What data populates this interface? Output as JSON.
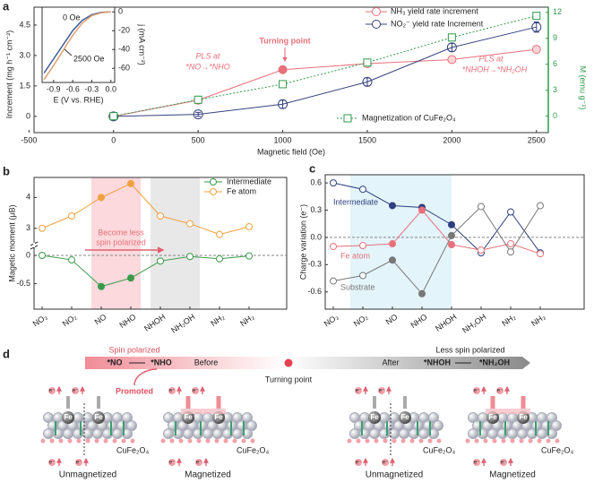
{
  "chart_data": [
    {
      "panel": "a",
      "type": "line",
      "xlabel": "Magnetic field (Oe)",
      "ylabel": "Increment (mg h⁻¹ cm⁻²)",
      "y2label": "M (emu g⁻¹)",
      "x": [
        0,
        500,
        1000,
        1500,
        2000,
        2500
      ],
      "series": [
        {
          "name": "NH₃ yield rate increment",
          "color": "#e8707a",
          "values": [
            0,
            0.8,
            2.3,
            2.6,
            2.8,
            3.3
          ],
          "errors": [
            0.05,
            0.1,
            0.1,
            0.1,
            0.1,
            0.1
          ]
        },
        {
          "name": "NO₂⁻ yield rate Increment",
          "color": "#36427f",
          "values": [
            0,
            0.1,
            0.6,
            1.7,
            3.4,
            4.4
          ],
          "errors": [
            0.05,
            0.1,
            0.2,
            0.2,
            0.2,
            0.25
          ]
        },
        {
          "name": "Magnetization of CuFe₂O₄",
          "color": "#2e9a4a",
          "axis": "y2",
          "values": [
            0,
            1.9,
            3.7,
            6.2,
            9.1,
            11.6
          ]
        }
      ],
      "xlim": [
        -470,
        2570
      ],
      "xticks": [
        -500,
        0,
        500,
        1000,
        1500,
        2000,
        2500
      ],
      "ylim": [
        -0.8,
        5.38
      ],
      "yticks": [
        0,
        1.5,
        {
          "value": 3,
          "label": "3.0"
        },
        4.5
      ],
      "y2lim": [
        -1.9,
        12.6
      ],
      "y2ticks": [
        0,
        3,
        6,
        9,
        12
      ],
      "annotations": [
        "Turning point",
        "PLS at",
        "*NO→*NHO",
        "PLS at",
        "*NHOH→*NH₂OH"
      ]
    },
    {
      "type": "line",
      "xlabel": "E (V vs. RHE)",
      "ylabel": "j (mA cm⁻²)",
      "x": [
        -1.05,
        -0.9,
        -0.75,
        -0.6,
        -0.45,
        -0.3,
        -0.15,
        0
      ],
      "series": [
        {
          "name": "0 Oe",
          "color": "#3d5a99",
          "values": [
            -65,
            -50,
            -35,
            -20,
            -9,
            -3,
            -0.5,
            0
          ]
        },
        {
          "name": "2500 Oe",
          "color": "#e0a070",
          "values": [
            -72,
            -57,
            -41,
            -25,
            -12,
            -4,
            -1,
            0
          ]
        }
      ],
      "xlim": [
        -1.08,
        0.06
      ],
      "xticks": [
        -0.9,
        -0.6,
        -0.3,
        {
          "value": 0,
          "label": "0.0"
        }
      ],
      "ylim": [
        -75,
        5
      ],
      "yticks": [
        0,
        -20,
        -40,
        -60
      ]
    },
    {
      "panel": "b",
      "type": "line",
      "ylabel": "Magetic moment (μB)",
      "categories": [
        "NO₃",
        "NO₂",
        "NO",
        "NHO",
        "NHOH",
        "NH₂OH",
        "NH₂",
        "NH₃"
      ],
      "series": [
        {
          "name": "Intermediate",
          "color": "#3a9a4a",
          "values": [
            0,
            -0.08,
            -0.55,
            -0.4,
            -0.1,
            -0.02,
            -0.06,
            -0.01
          ]
        },
        {
          "name": "Fe atom",
          "color": "#f0a040",
          "values": [
            3.0,
            3.4,
            4.0,
            4.45,
            3.4,
            3.15,
            2.8,
            3.05
          ]
        }
      ],
      "ylim": [
        -0.95,
        4.65
      ],
      "ybreak": [
        0.19,
        2.47
      ],
      "yticks": [
        4,
        3,
        0,
        -0.5
      ],
      "annotations": [
        "Become less",
        "spin polarized"
      ]
    },
    {
      "panel": "c",
      "type": "line",
      "ylabel": "Charge variation (e⁻)",
      "categories": [
        "NO₃",
        "NO₂",
        "NO",
        "NHO",
        "NHOH",
        "NH₂OH",
        "NH₂",
        "NH₃"
      ],
      "series": [
        {
          "name": "Intermediate",
          "color": "#2f3f7f",
          "values": [
            0.6,
            0.53,
            0.35,
            0.33,
            0.14,
            -0.17,
            0.28,
            -0.17
          ]
        },
        {
          "name": "Fe atom",
          "color": "#e8707a",
          "values": [
            -0.1,
            -0.09,
            -0.07,
            0.3,
            -0.08,
            -0.14,
            -0.07,
            -0.18
          ]
        },
        {
          "name": "Substrate",
          "color": "#777777",
          "values": [
            -0.48,
            -0.42,
            -0.25,
            -0.62,
            0.02,
            0.34,
            -0.16,
            0.35
          ]
        }
      ],
      "ylim": [
        -0.79,
        0.69
      ],
      "yticks": [
        0.6,
        0.3,
        {
          "value": 0,
          "label": "0.0"
        },
        -0.3,
        -0.6
      ]
    }
  ],
  "diagram": {
    "panel": "d",
    "spin_polarized": "Spin polarized",
    "before_state": "*NO",
    "before_product": "*NHO",
    "before": "Before",
    "promoted": "Promoted",
    "turning_point": "Turning point",
    "after": "After",
    "less_spin_polarized": "Less spin polarized",
    "after_state": "*NHOH",
    "after_product": "*NH₂OH",
    "fe": "Fe",
    "substrate": "CuFe₂O₄",
    "electron": "e⁻",
    "states": [
      "Unmagnetized",
      "Magnetized",
      "Unmagnetized",
      "Magnetized"
    ]
  }
}
